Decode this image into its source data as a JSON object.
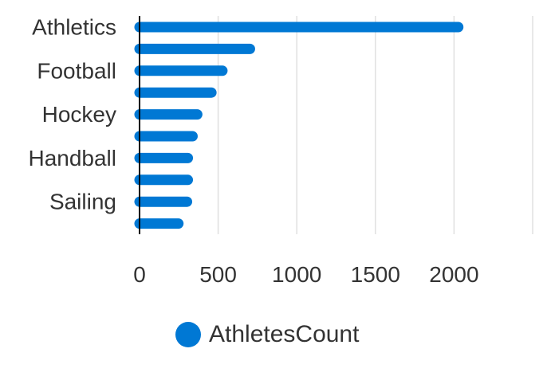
{
  "chart_data": {
    "type": "bar",
    "orientation": "horizontal",
    "categories": [
      "Athletics",
      "",
      "Football",
      "",
      "Hockey",
      "",
      "Handball",
      "",
      "Sailing",
      ""
    ],
    "series": [
      {
        "name": "AthletesCount",
        "values": [
          2060,
          735,
          560,
          490,
          400,
          370,
          340,
          340,
          335,
          280
        ]
      }
    ],
    "x_ticks": [
      0,
      500,
      1000,
      1500,
      2000
    ],
    "xlim": [
      0,
      2500
    ],
    "grid": true,
    "legend_position": "bottom",
    "colors": {
      "bar": "#0078d4",
      "grid": "#e0e0e0",
      "axis": "#000000",
      "text": "#333333"
    }
  }
}
